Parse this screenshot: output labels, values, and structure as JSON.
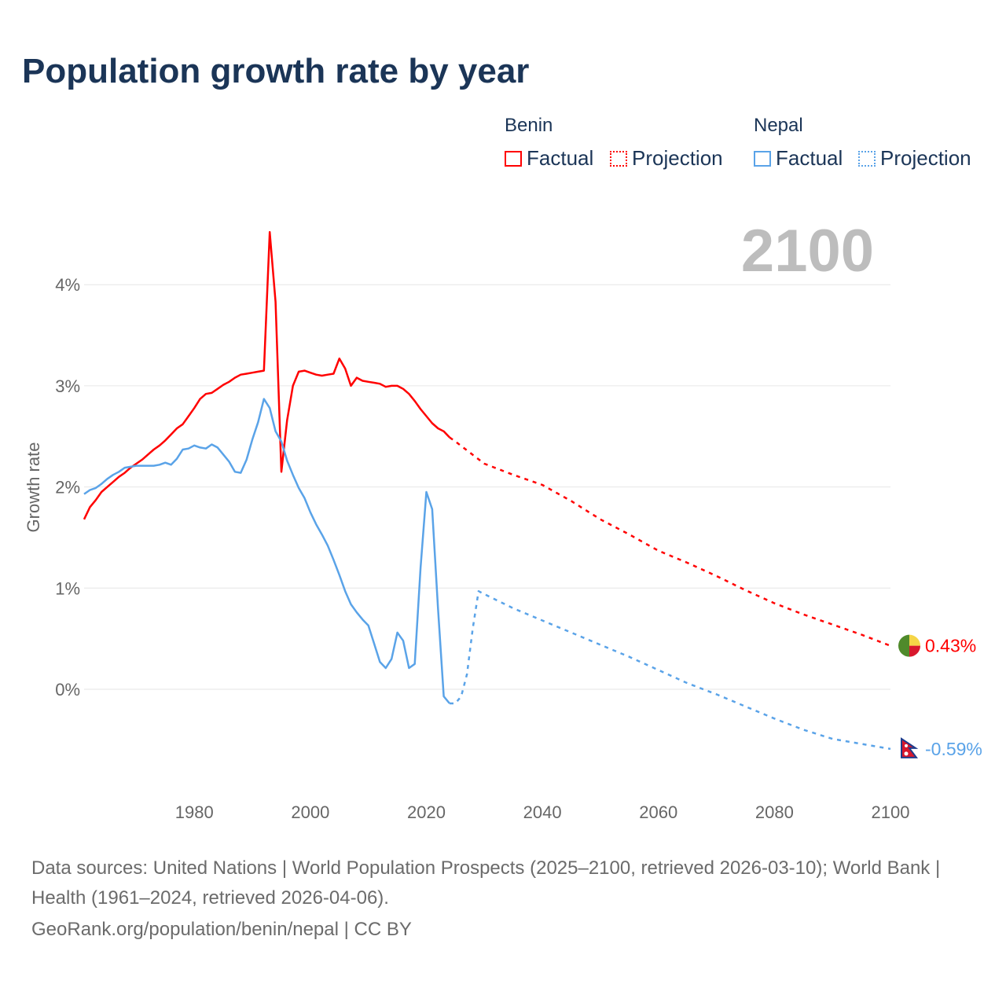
{
  "title": "Population growth rate by year",
  "legend": {
    "groups": [
      {
        "name": "Benin",
        "factual": "Factual",
        "projection": "Projection",
        "color": "#ff0000"
      },
      {
        "name": "Nepal",
        "factual": "Factual",
        "projection": "Projection",
        "color": "#5aa3e8"
      }
    ]
  },
  "year_label": "2100",
  "chart_data": {
    "type": "line",
    "title": "Population growth rate by year",
    "xlabel": "",
    "ylabel": "Growth rate",
    "xlim": [
      1961,
      2100
    ],
    "ylim": [
      -1,
      4.6
    ],
    "x_ticks": [
      "1980",
      "2000",
      "2020",
      "2040",
      "2060",
      "2080",
      "2100"
    ],
    "y_ticks": [
      "0%",
      "1%",
      "2%",
      "3%",
      "4%"
    ],
    "grid": true,
    "series": [
      {
        "name": "Benin Factual",
        "color": "#ff0000",
        "dashed": false,
        "x": [
          1961,
          1962,
          1963,
          1964,
          1965,
          1966,
          1967,
          1968,
          1969,
          1970,
          1971,
          1972,
          1973,
          1974,
          1975,
          1976,
          1977,
          1978,
          1979,
          1980,
          1981,
          1982,
          1983,
          1984,
          1985,
          1986,
          1987,
          1988,
          1989,
          1990,
          1991,
          1992,
          1993,
          1994,
          1995,
          1996,
          1997,
          1998,
          1999,
          2000,
          2001,
          2002,
          2003,
          2004,
          2005,
          2006,
          2007,
          2008,
          2009,
          2010,
          2011,
          2012,
          2013,
          2014,
          2015,
          2016,
          2017,
          2018,
          2019,
          2020,
          2021,
          2022,
          2023,
          2024
        ],
        "y": [
          1.68,
          1.8,
          1.87,
          1.95,
          2.0,
          2.05,
          2.1,
          2.14,
          2.19,
          2.23,
          2.27,
          2.32,
          2.37,
          2.41,
          2.46,
          2.52,
          2.58,
          2.62,
          2.7,
          2.78,
          2.87,
          2.92,
          2.93,
          2.97,
          3.01,
          3.04,
          3.08,
          3.11,
          3.12,
          3.13,
          3.14,
          3.15,
          4.52,
          3.83,
          2.15,
          2.66,
          3.0,
          3.14,
          3.15,
          3.13,
          3.11,
          3.1,
          3.11,
          3.12,
          3.27,
          3.17,
          3.0,
          3.08,
          3.05,
          3.04,
          3.03,
          3.02,
          2.99,
          3.0,
          3.0,
          2.97,
          2.92,
          2.85,
          2.77,
          2.7,
          2.63,
          2.58,
          2.55,
          2.49
        ]
      },
      {
        "name": "Benin Projection",
        "color": "#ff0000",
        "dashed": true,
        "x": [
          2024,
          2025,
          2030,
          2035,
          2040,
          2045,
          2050,
          2055,
          2060,
          2065,
          2070,
          2075,
          2080,
          2085,
          2090,
          2095,
          2100
        ],
        "y": [
          2.49,
          2.45,
          2.23,
          2.12,
          2.02,
          1.86,
          1.68,
          1.53,
          1.37,
          1.25,
          1.12,
          0.98,
          0.85,
          0.74,
          0.64,
          0.54,
          0.43
        ]
      },
      {
        "name": "Nepal Factual",
        "color": "#5aa3e8",
        "dashed": false,
        "x": [
          1961,
          1962,
          1963,
          1964,
          1965,
          1966,
          1967,
          1968,
          1969,
          1970,
          1971,
          1972,
          1973,
          1974,
          1975,
          1976,
          1977,
          1978,
          1979,
          1980,
          1981,
          1982,
          1983,
          1984,
          1985,
          1986,
          1987,
          1988,
          1989,
          1990,
          1991,
          1992,
          1993,
          1994,
          1995,
          1996,
          1997,
          1998,
          1999,
          2000,
          2001,
          2002,
          2003,
          2004,
          2005,
          2006,
          2007,
          2008,
          2009,
          2010,
          2011,
          2012,
          2013,
          2014,
          2015,
          2016,
          2017,
          2018,
          2019,
          2020,
          2021,
          2022,
          2023,
          2024
        ],
        "y": [
          1.93,
          1.97,
          1.99,
          2.03,
          2.08,
          2.12,
          2.15,
          2.19,
          2.2,
          2.21,
          2.21,
          2.21,
          2.21,
          2.22,
          2.24,
          2.22,
          2.28,
          2.37,
          2.38,
          2.41,
          2.39,
          2.38,
          2.42,
          2.39,
          2.32,
          2.25,
          2.15,
          2.14,
          2.27,
          2.47,
          2.64,
          2.87,
          2.78,
          2.55,
          2.45,
          2.26,
          2.12,
          1.99,
          1.89,
          1.75,
          1.63,
          1.53,
          1.42,
          1.28,
          1.13,
          0.97,
          0.84,
          0.76,
          0.69,
          0.63,
          0.45,
          0.27,
          0.21,
          0.3,
          0.56,
          0.48,
          0.21,
          0.25,
          1.2,
          1.95,
          1.78,
          0.8,
          -0.07,
          -0.14
        ]
      },
      {
        "name": "Nepal Projection",
        "color": "#5aa3e8",
        "dashed": true,
        "x": [
          2024,
          2025,
          2026,
          2027,
          2028,
          2029,
          2030,
          2035,
          2040,
          2045,
          2050,
          2055,
          2060,
          2065,
          2070,
          2075,
          2080,
          2085,
          2090,
          2095,
          2100
        ],
        "y": [
          -0.14,
          -0.14,
          -0.07,
          0.15,
          0.6,
          0.97,
          0.94,
          0.8,
          0.68,
          0.56,
          0.44,
          0.32,
          0.19,
          0.06,
          -0.05,
          -0.17,
          -0.29,
          -0.4,
          -0.49,
          -0.54,
          -0.59
        ]
      }
    ],
    "end_labels": [
      {
        "country": "Benin",
        "value_label": "0.43%",
        "value": 0.43,
        "color": "#ff0000"
      },
      {
        "country": "Nepal",
        "value_label": "-0.59%",
        "value": -0.59,
        "color": "#5aa3e8"
      }
    ]
  },
  "footer": {
    "sources": "Data sources: United Nations | World Population Prospects (2025–2100, retrieved 2026-03-10); World Bank | Health (1961–2024, retrieved 2026-04-06).",
    "credit": "GeoRank.org/population/benin/nepal | CC BY"
  }
}
